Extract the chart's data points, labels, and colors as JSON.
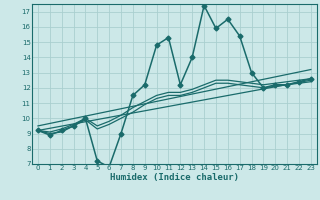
{
  "bg_color": "#cce8e8",
  "line_color": "#1a6b6b",
  "grid_color": "#aacfcf",
  "xlabel": "Humidex (Indice chaleur)",
  "xlim": [
    -0.5,
    23.5
  ],
  "ylim": [
    7,
    17.5
  ],
  "yticks": [
    7,
    8,
    9,
    10,
    11,
    12,
    13,
    14,
    15,
    16,
    17
  ],
  "xticks": [
    0,
    1,
    2,
    3,
    4,
    5,
    6,
    7,
    8,
    9,
    10,
    11,
    12,
    13,
    14,
    15,
    16,
    17,
    18,
    19,
    20,
    21,
    22,
    23
  ],
  "main_x": [
    0,
    1,
    2,
    3,
    4,
    5,
    6,
    7,
    8,
    9,
    10,
    11,
    12,
    13,
    14,
    15,
    16,
    17,
    18,
    19,
    20,
    21,
    22,
    23
  ],
  "main_y": [
    9.2,
    8.9,
    9.2,
    9.5,
    10.0,
    7.2,
    6.8,
    9.0,
    11.5,
    12.2,
    14.8,
    15.3,
    12.2,
    14.0,
    17.4,
    15.9,
    16.5,
    15.4,
    13.0,
    12.0,
    12.2,
    12.2,
    12.4,
    12.6
  ],
  "trend1_x": [
    0,
    23
  ],
  "trend1_y": [
    9.2,
    12.5
  ],
  "trend2_x": [
    0,
    23
  ],
  "trend2_y": [
    9.5,
    13.2
  ],
  "smooth1_x": [
    0,
    1,
    2,
    3,
    4,
    5,
    6,
    7,
    8,
    9,
    10,
    11,
    12,
    13,
    14,
    15,
    16,
    17,
    18,
    19,
    20,
    21,
    22,
    23
  ],
  "smooth1_y": [
    9.2,
    9.0,
    9.1,
    9.5,
    9.9,
    9.3,
    9.6,
    10.0,
    10.4,
    10.9,
    11.3,
    11.5,
    11.5,
    11.7,
    12.0,
    12.3,
    12.3,
    12.2,
    12.1,
    12.0,
    12.1,
    12.2,
    12.3,
    12.4
  ],
  "smooth2_x": [
    0,
    1,
    2,
    3,
    4,
    5,
    6,
    7,
    8,
    9,
    10,
    11,
    12,
    13,
    14,
    15,
    16,
    17,
    18,
    19,
    20,
    21,
    22,
    23
  ],
  "smooth2_y": [
    9.2,
    9.1,
    9.3,
    9.6,
    10.0,
    9.5,
    9.8,
    10.2,
    10.7,
    11.1,
    11.5,
    11.7,
    11.7,
    11.9,
    12.2,
    12.5,
    12.5,
    12.4,
    12.3,
    12.2,
    12.3,
    12.4,
    12.5,
    12.6
  ]
}
